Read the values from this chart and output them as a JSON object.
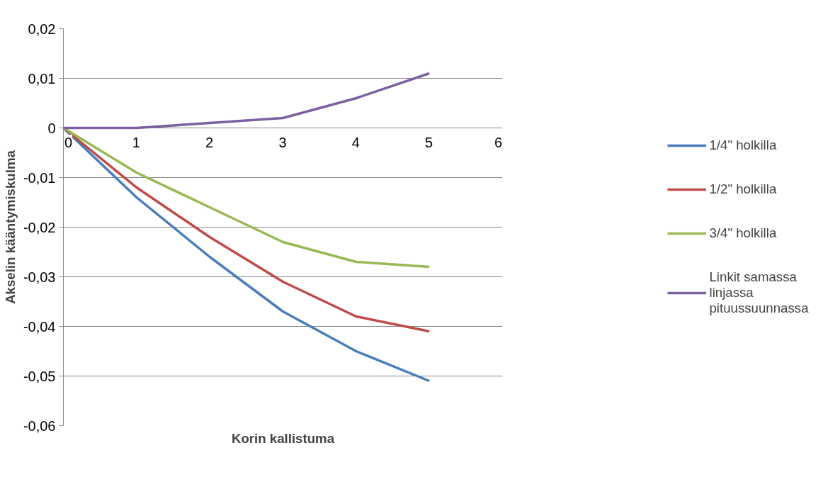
{
  "chart_data": {
    "type": "line",
    "xlabel": "Korin kallistuma",
    "ylabel": "Akselin kääntymiskulma",
    "x": [
      0,
      1,
      2,
      3,
      4,
      5
    ],
    "series": [
      {
        "name": "1/4\" holkilla",
        "color": "#4a7ebb",
        "values": [
          0,
          -0.014,
          -0.026,
          -0.037,
          -0.045,
          -0.051
        ]
      },
      {
        "name": "1/2\" holkilla",
        "color": "#be4b48",
        "values": [
          0,
          -0.012,
          -0.022,
          -0.031,
          -0.038,
          -0.041
        ]
      },
      {
        "name": "3/4\" holkilla",
        "color": "#98b954",
        "values": [
          0,
          -0.009,
          -0.016,
          -0.023,
          -0.027,
          -0.028
        ]
      },
      {
        "name": "Linkit samassa linjassa pituussuunnassa",
        "color": "#7d60a0",
        "values": [
          0,
          0,
          0.001,
          0.002,
          0.006,
          0.011
        ]
      }
    ],
    "xlim": [
      0,
      6
    ],
    "xticks": [
      0,
      1,
      2,
      3,
      4,
      5,
      6
    ],
    "ylim": [
      -0.06,
      0.02
    ],
    "yticks": [
      {
        "value": -0.06,
        "label": "-0,06"
      },
      {
        "value": -0.05,
        "label": "-0,05"
      },
      {
        "value": -0.04,
        "label": "-0,04"
      },
      {
        "value": -0.03,
        "label": "-0,03"
      },
      {
        "value": -0.02,
        "label": "-0,02"
      },
      {
        "value": -0.01,
        "label": "-0,01"
      },
      {
        "value": 0,
        "label": "0"
      },
      {
        "value": 0.01,
        "label": "0,01"
      },
      {
        "value": 0.02,
        "label": "0,02"
      }
    ],
    "grid": "y",
    "legend": "right",
    "marker": "none",
    "line_style": "solid"
  }
}
